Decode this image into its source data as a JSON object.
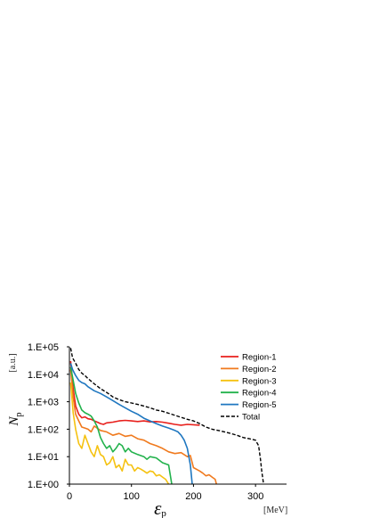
{
  "chart_data": {
    "type": "line",
    "xlabel": "ε",
    "xlabel_sub": "p",
    "xunit": "[MeV]",
    "ylabel": "N",
    "ylabel_sub": "p",
    "yunit": "[a.u.]",
    "y_scale": "log",
    "xlim": [
      0,
      350
    ],
    "ylim": [
      1,
      100000
    ],
    "x_ticks": [
      0,
      100,
      200,
      300
    ],
    "x_tick_labels": [
      "0",
      "100",
      "200",
      "300"
    ],
    "y_ticks": [
      1,
      10,
      100,
      1000,
      10000,
      100000
    ],
    "y_tick_labels": [
      "1.E+00",
      "1.E+01",
      "1.E+02",
      "1.E+03",
      "1.E+04",
      "1.E+05"
    ],
    "grid": false,
    "legend_position": "top-right",
    "series": [
      {
        "name": "Region-1",
        "color": "#e8201c",
        "dash": "solid",
        "x": [
          2,
          6,
          10,
          15,
          20,
          25,
          30,
          35,
          40,
          45,
          50,
          55,
          60,
          70,
          80,
          90,
          100,
          110,
          120,
          130,
          140,
          150,
          160,
          170,
          180,
          190,
          200,
          210
        ],
        "y": [
          30000,
          3000,
          700,
          350,
          260,
          280,
          240,
          230,
          200,
          180,
          160,
          150,
          170,
          180,
          200,
          210,
          200,
          190,
          200,
          185,
          190,
          180,
          165,
          150,
          140,
          150,
          145,
          140
        ]
      },
      {
        "name": "Region-2",
        "color": "#f07a1e",
        "dash": "solid",
        "x": [
          2,
          6,
          10,
          15,
          20,
          25,
          30,
          35,
          40,
          50,
          60,
          70,
          80,
          90,
          100,
          110,
          120,
          130,
          140,
          150,
          160,
          170,
          180,
          190,
          195,
          200,
          210,
          215,
          220,
          225,
          230,
          235,
          237
        ],
        "y": [
          15000,
          1500,
          350,
          200,
          120,
          110,
          100,
          80,
          130,
          90,
          80,
          60,
          70,
          55,
          60,
          45,
          40,
          30,
          25,
          20,
          15,
          13,
          14,
          10,
          11,
          4,
          3,
          2.5,
          2,
          2.2,
          1.8,
          1.5,
          1
        ]
      },
      {
        "name": "Region-3",
        "color": "#f5c211",
        "dash": "solid",
        "x": [
          2,
          6,
          10,
          15,
          20,
          25,
          30,
          35,
          40,
          45,
          50,
          55,
          60,
          65,
          70,
          75,
          80,
          85,
          90,
          95,
          100,
          105,
          110,
          115,
          120,
          125,
          130,
          135,
          140,
          145,
          150,
          155,
          160
        ],
        "y": [
          5000,
          400,
          100,
          30,
          20,
          60,
          30,
          15,
          10,
          25,
          12,
          10,
          5,
          6,
          10,
          4,
          5,
          3,
          8,
          5,
          5,
          3,
          4,
          3.5,
          3,
          2.5,
          3,
          2.8,
          2,
          2.2,
          1.8,
          1.5,
          1
        ]
      },
      {
        "name": "Region-4",
        "color": "#22b24c",
        "dash": "solid",
        "x": [
          2,
          5,
          10,
          15,
          20,
          25,
          30,
          35,
          40,
          45,
          50,
          55,
          60,
          65,
          70,
          75,
          80,
          85,
          90,
          95,
          100,
          110,
          120,
          125,
          130,
          140,
          150,
          160,
          165
        ],
        "y": [
          18000,
          8000,
          2000,
          900,
          500,
          400,
          350,
          300,
          200,
          120,
          50,
          30,
          20,
          25,
          15,
          20,
          30,
          25,
          15,
          20,
          15,
          12,
          10,
          8,
          10,
          9,
          6,
          5,
          1
        ]
      },
      {
        "name": "Region-5",
        "color": "#1f77c0",
        "dash": "solid",
        "x": [
          2,
          5,
          10,
          15,
          20,
          25,
          30,
          40,
          50,
          60,
          70,
          80,
          90,
          100,
          110,
          120,
          130,
          140,
          150,
          160,
          170,
          175,
          180,
          185,
          190,
          195,
          198
        ],
        "y": [
          25000,
          15000,
          9000,
          6000,
          5000,
          4500,
          3500,
          2500,
          2000,
          1500,
          1100,
          800,
          600,
          450,
          350,
          250,
          200,
          160,
          130,
          110,
          90,
          80,
          60,
          40,
          20,
          5,
          1
        ]
      },
      {
        "name": "Total",
        "color": "#000000",
        "dash": "dashed",
        "x": [
          2,
          5,
          10,
          15,
          20,
          25,
          30,
          40,
          50,
          60,
          70,
          80,
          90,
          100,
          110,
          120,
          130,
          140,
          150,
          160,
          170,
          180,
          190,
          200,
          210,
          220,
          230,
          240,
          250,
          260,
          270,
          280,
          290,
          300,
          305,
          308,
          310,
          313
        ],
        "y": [
          90000,
          40000,
          25000,
          15000,
          11000,
          9000,
          7000,
          4500,
          3000,
          2200,
          1500,
          1200,
          1000,
          900,
          800,
          700,
          600,
          500,
          450,
          380,
          320,
          270,
          230,
          200,
          160,
          120,
          100,
          90,
          80,
          70,
          60,
          50,
          45,
          40,
          25,
          8,
          3,
          1
        ]
      }
    ]
  }
}
